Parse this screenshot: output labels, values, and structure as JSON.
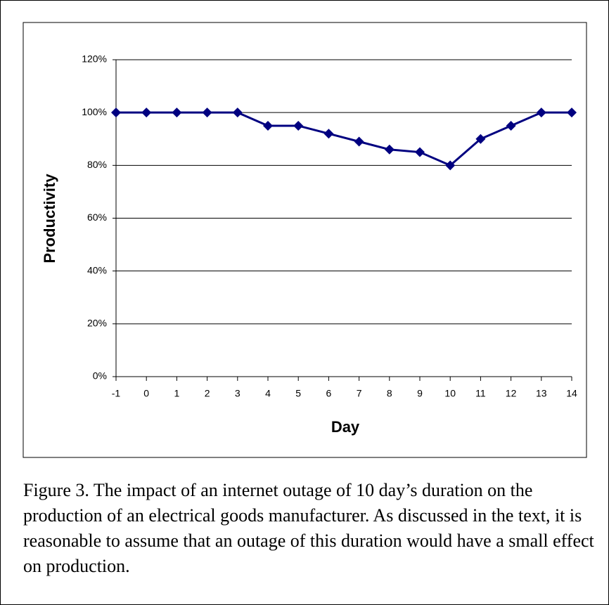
{
  "chart_data": {
    "type": "line",
    "x": [
      -1,
      0,
      1,
      2,
      3,
      4,
      5,
      6,
      7,
      8,
      9,
      10,
      11,
      12,
      13,
      14
    ],
    "series": [
      {
        "name": "Productivity",
        "color": "#000080",
        "values": [
          100,
          100,
          100,
          100,
          100,
          95,
          95,
          92,
          89,
          86,
          85,
          80,
          90,
          95,
          100,
          100
        ]
      }
    ],
    "xlabel": "Day",
    "ylabel": "Productivity",
    "xlim": [
      -1,
      14
    ],
    "xticks": [
      -1,
      0,
      1,
      2,
      3,
      4,
      5,
      6,
      7,
      8,
      9,
      10,
      11,
      12,
      13,
      14
    ],
    "ylim": [
      0,
      120
    ],
    "yticks": [
      {
        "value": 0,
        "label": "0%"
      },
      {
        "value": 20,
        "label": "20%"
      },
      {
        "value": 40,
        "label": "40%"
      },
      {
        "value": 60,
        "label": "60%"
      },
      {
        "value": 80,
        "label": "80%"
      },
      {
        "value": 100,
        "label": "100%"
      },
      {
        "value": 120,
        "label": "120%"
      }
    ],
    "grid": true
  },
  "caption": "Figure 3. The impact of an internet outage of 10 day’s duration on the production of an electrical goods manufacturer. As discussed in the text, it is reasonable to assume that an outage of this duration would have a small effect on production."
}
